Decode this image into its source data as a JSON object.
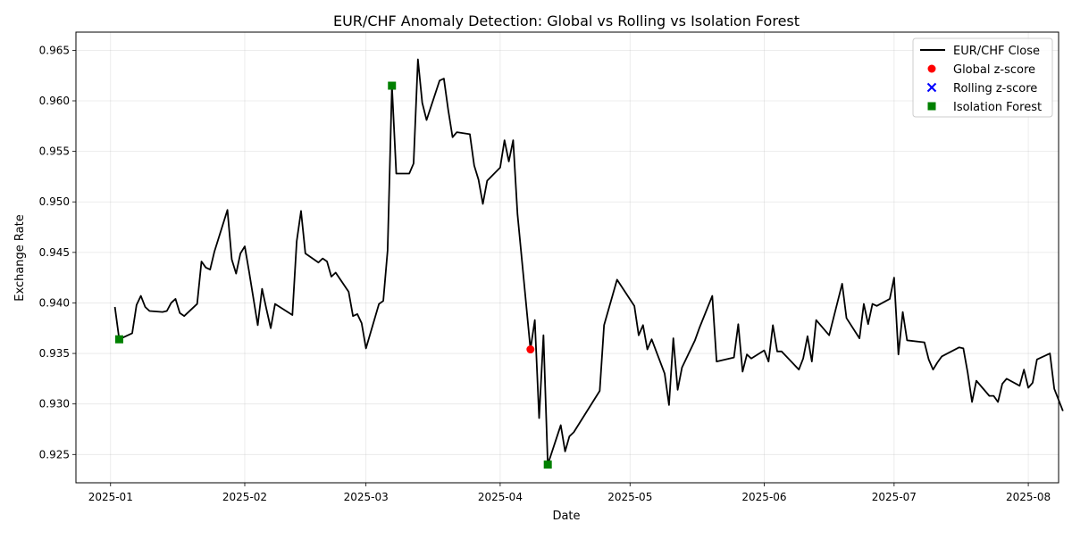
{
  "chart_data": {
    "type": "line",
    "title": "EUR/CHF Anomaly Detection: Global vs Rolling vs Isolation Forest",
    "xlabel": "Date",
    "ylabel": "Exchange Rate",
    "xlim": [
      "2024-12-24",
      "2025-08-08"
    ],
    "ylim": [
      0.9222,
      0.9668
    ],
    "x_ticks": [
      "2025-01-01",
      "2025-02-01",
      "2025-03-01",
      "2025-04-01",
      "2025-05-01",
      "2025-06-01",
      "2025-07-01",
      "2025-08-01"
    ],
    "x_tick_labels": [
      "2025-01",
      "2025-02",
      "2025-03",
      "2025-04",
      "2025-05",
      "2025-06",
      "2025-07",
      "2025-08"
    ],
    "y_ticks": [
      0.925,
      0.93,
      0.935,
      0.94,
      0.945,
      0.95,
      0.955,
      0.96,
      0.965
    ],
    "y_tick_labels": [
      "0.925",
      "0.930",
      "0.935",
      "0.940",
      "0.945",
      "0.950",
      "0.955",
      "0.960",
      "0.965"
    ],
    "grid": true,
    "legend_position": "top-right",
    "series": [
      {
        "name": "EUR/CHF Close",
        "kind": "line",
        "color": "#000000",
        "points": [
          [
            "2025-01-02",
            0.9396
          ],
          [
            "2025-01-03",
            0.9364
          ],
          [
            "2025-01-06",
            0.937
          ],
          [
            "2025-01-07",
            0.9398
          ],
          [
            "2025-01-08",
            0.9407
          ],
          [
            "2025-01-09",
            0.9396
          ],
          [
            "2025-01-10",
            0.9392
          ],
          [
            "2025-01-13",
            0.9391
          ],
          [
            "2025-01-14",
            0.9392
          ],
          [
            "2025-01-15",
            0.94
          ],
          [
            "2025-01-16",
            0.9404
          ],
          [
            "2025-01-17",
            0.939
          ],
          [
            "2025-01-18",
            0.9387
          ],
          [
            "2025-01-21",
            0.9399
          ],
          [
            "2025-01-22",
            0.9441
          ],
          [
            "2025-01-23",
            0.9435
          ],
          [
            "2025-01-24",
            0.9433
          ],
          [
            "2025-01-25",
            0.9451
          ],
          [
            "2025-01-28",
            0.9492
          ],
          [
            "2025-01-29",
            0.9443
          ],
          [
            "2025-01-30",
            0.9429
          ],
          [
            "2025-01-31",
            0.9449
          ],
          [
            "2025-02-01",
            0.9456
          ],
          [
            "2025-02-02",
            0.9431
          ],
          [
            "2025-02-04",
            0.9378
          ],
          [
            "2025-02-05",
            0.9414
          ],
          [
            "2025-02-06",
            0.9394
          ],
          [
            "2025-02-07",
            0.9375
          ],
          [
            "2025-02-08",
            0.9399
          ],
          [
            "2025-02-12",
            0.9388
          ],
          [
            "2025-02-13",
            0.9461
          ],
          [
            "2025-02-14",
            0.9491
          ],
          [
            "2025-02-15",
            0.9449
          ],
          [
            "2025-02-18",
            0.944
          ],
          [
            "2025-02-19",
            0.9444
          ],
          [
            "2025-02-20",
            0.9441
          ],
          [
            "2025-02-21",
            0.9426
          ],
          [
            "2025-02-22",
            0.943
          ],
          [
            "2025-02-25",
            0.9411
          ],
          [
            "2025-02-26",
            0.9387
          ],
          [
            "2025-02-27",
            0.9389
          ],
          [
            "2025-02-28",
            0.938
          ],
          [
            "2025-03-01",
            0.9355
          ],
          [
            "2025-03-04",
            0.9399
          ],
          [
            "2025-03-05",
            0.9402
          ],
          [
            "2025-03-06",
            0.9452
          ],
          [
            "2025-03-07",
            0.9615
          ],
          [
            "2025-03-08",
            0.9528
          ],
          [
            "2025-03-11",
            0.9528
          ],
          [
            "2025-03-12",
            0.9538
          ],
          [
            "2025-03-13",
            0.9641
          ],
          [
            "2025-03-14",
            0.9598
          ],
          [
            "2025-03-15",
            0.9581
          ],
          [
            "2025-03-18",
            0.962
          ],
          [
            "2025-03-19",
            0.9622
          ],
          [
            "2025-03-20",
            0.9591
          ],
          [
            "2025-03-21",
            0.9564
          ],
          [
            "2025-03-22",
            0.9569
          ],
          [
            "2025-03-25",
            0.9567
          ],
          [
            "2025-03-26",
            0.9536
          ],
          [
            "2025-03-27",
            0.9522
          ],
          [
            "2025-03-28",
            0.9498
          ],
          [
            "2025-03-29",
            0.9521
          ],
          [
            "2025-04-01",
            0.9534
          ],
          [
            "2025-04-02",
            0.9561
          ],
          [
            "2025-04-03",
            0.954
          ],
          [
            "2025-04-04",
            0.9561
          ],
          [
            "2025-04-05",
            0.9488
          ],
          [
            "2025-04-08",
            0.9354
          ],
          [
            "2025-04-09",
            0.9383
          ],
          [
            "2025-04-10",
            0.9286
          ],
          [
            "2025-04-11",
            0.9368
          ],
          [
            "2025-04-12",
            0.924
          ],
          [
            "2025-04-15",
            0.9279
          ],
          [
            "2025-04-16",
            0.9253
          ],
          [
            "2025-04-17",
            0.9268
          ],
          [
            "2025-04-18",
            0.9272
          ],
          [
            "2025-04-24",
            0.9313
          ],
          [
            "2025-04-25",
            0.9378
          ],
          [
            "2025-04-28",
            0.9423
          ],
          [
            "2025-05-02",
            0.9397
          ],
          [
            "2025-05-03",
            0.9368
          ],
          [
            "2025-05-04",
            0.9378
          ],
          [
            "2025-05-05",
            0.9354
          ],
          [
            "2025-05-06",
            0.9364
          ],
          [
            "2025-05-09",
            0.933
          ],
          [
            "2025-05-10",
            0.9299
          ],
          [
            "2025-05-11",
            0.9365
          ],
          [
            "2025-05-12",
            0.9314
          ],
          [
            "2025-05-13",
            0.9336
          ],
          [
            "2025-05-16",
            0.9363
          ],
          [
            "2025-05-17",
            0.9375
          ],
          [
            "2025-05-20",
            0.9407
          ],
          [
            "2025-05-21",
            0.9342
          ],
          [
            "2025-05-25",
            0.9346
          ],
          [
            "2025-05-26",
            0.9379
          ],
          [
            "2025-05-27",
            0.9332
          ],
          [
            "2025-05-28",
            0.9349
          ],
          [
            "2025-05-29",
            0.9345
          ],
          [
            "2025-06-01",
            0.9353
          ],
          [
            "2025-06-02",
            0.9342
          ],
          [
            "2025-06-03",
            0.9378
          ],
          [
            "2025-06-04",
            0.9352
          ],
          [
            "2025-06-05",
            0.9352
          ],
          [
            "2025-06-09",
            0.9334
          ],
          [
            "2025-06-10",
            0.9345
          ],
          [
            "2025-06-11",
            0.9367
          ],
          [
            "2025-06-12",
            0.9342
          ],
          [
            "2025-06-13",
            0.9383
          ],
          [
            "2025-06-16",
            0.9368
          ],
          [
            "2025-06-19",
            0.9419
          ],
          [
            "2025-06-20",
            0.9385
          ],
          [
            "2025-06-23",
            0.9365
          ],
          [
            "2025-06-24",
            0.9399
          ],
          [
            "2025-06-25",
            0.9379
          ],
          [
            "2025-06-26",
            0.9399
          ],
          [
            "2025-06-27",
            0.9397
          ],
          [
            "2025-06-30",
            0.9404
          ],
          [
            "2025-07-01",
            0.9425
          ],
          [
            "2025-07-02",
            0.9349
          ],
          [
            "2025-07-03",
            0.9391
          ],
          [
            "2025-07-04",
            0.9363
          ],
          [
            "2025-07-08",
            0.9361
          ],
          [
            "2025-07-09",
            0.9344
          ],
          [
            "2025-07-10",
            0.9334
          ],
          [
            "2025-07-11",
            0.9341
          ],
          [
            "2025-07-12",
            0.9347
          ],
          [
            "2025-07-16",
            0.9356
          ],
          [
            "2025-07-17",
            0.9355
          ],
          [
            "2025-07-18",
            0.9331
          ],
          [
            "2025-07-19",
            0.9302
          ],
          [
            "2025-07-20",
            0.9323
          ],
          [
            "2025-07-23",
            0.9308
          ],
          [
            "2025-07-24",
            0.9308
          ],
          [
            "2025-07-25",
            0.9302
          ],
          [
            "2025-07-26",
            0.932
          ],
          [
            "2025-07-27",
            0.9325
          ],
          [
            "2025-07-30",
            0.9318
          ],
          [
            "2025-07-31",
            0.9334
          ],
          [
            "2025-08-01",
            0.9316
          ],
          [
            "2025-08-02",
            0.9321
          ],
          [
            "2025-08-03",
            0.9344
          ],
          [
            "2025-08-06",
            0.935
          ],
          [
            "2025-08-07",
            0.9315
          ],
          [
            "2025-08-09",
            0.9293
          ]
        ]
      },
      {
        "name": "Global z-score",
        "kind": "scatter",
        "marker": "circle",
        "color": "#ff0000",
        "points": [
          [
            "2025-04-08",
            0.9354
          ]
        ]
      },
      {
        "name": "Rolling z-score",
        "kind": "scatter",
        "marker": "x",
        "color": "#0000ff",
        "points": []
      },
      {
        "name": "Isolation Forest",
        "kind": "scatter",
        "marker": "square",
        "color": "#008000",
        "points": [
          [
            "2025-01-03",
            0.9364
          ],
          [
            "2025-03-07",
            0.9615
          ],
          [
            "2025-04-12",
            0.924
          ]
        ]
      }
    ]
  }
}
